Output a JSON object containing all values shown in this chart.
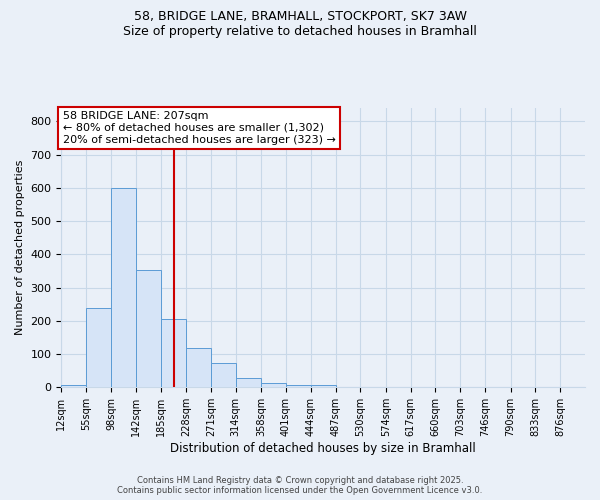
{
  "title_line1": "58, BRIDGE LANE, BRAMHALL, STOCKPORT, SK7 3AW",
  "title_line2": "Size of property relative to detached houses in Bramhall",
  "xlabel": "Distribution of detached houses by size in Bramhall",
  "ylabel": "Number of detached properties",
  "bin_labels": [
    "12sqm",
    "55sqm",
    "98sqm",
    "142sqm",
    "185sqm",
    "228sqm",
    "271sqm",
    "314sqm",
    "358sqm",
    "401sqm",
    "444sqm",
    "487sqm",
    "530sqm",
    "574sqm",
    "617sqm",
    "660sqm",
    "703sqm",
    "746sqm",
    "790sqm",
    "833sqm",
    "876sqm"
  ],
  "bin_edges": [
    12,
    55,
    98,
    142,
    185,
    228,
    271,
    314,
    358,
    401,
    444,
    487,
    530,
    574,
    617,
    660,
    703,
    746,
    790,
    833,
    876
  ],
  "bar_heights": [
    8,
    238,
    598,
    352,
    207,
    117,
    72,
    28,
    12,
    8,
    8,
    0,
    0,
    0,
    0,
    0,
    0,
    0,
    0,
    0
  ],
  "bar_facecolor": "#d6e4f7",
  "bar_edgecolor": "#5b9bd5",
  "grid_color": "#c8d8e8",
  "background_color": "#eaf0f8",
  "vline_x": 207,
  "vline_color": "#cc0000",
  "annotation_text": "58 BRIDGE LANE: 207sqm\n← 80% of detached houses are smaller (1,302)\n20% of semi-detached houses are larger (323) →",
  "annotation_box_color": "#cc0000",
  "ylim": [
    0,
    840
  ],
  "yticks": [
    0,
    100,
    200,
    300,
    400,
    500,
    600,
    700,
    800
  ],
  "footnote1": "Contains HM Land Registry data © Crown copyright and database right 2025.",
  "footnote2": "Contains public sector information licensed under the Open Government Licence v3.0."
}
